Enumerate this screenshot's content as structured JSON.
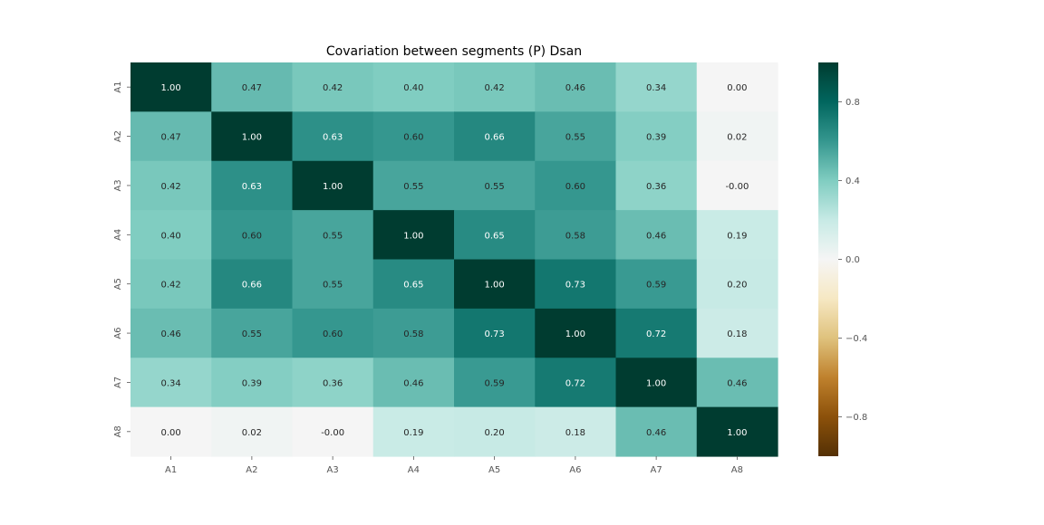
{
  "chart_data": {
    "type": "heatmap",
    "title": "Covariation between segments (P) Dsan",
    "xlabel": "",
    "ylabel": "",
    "x_categories": [
      "A1",
      "A2",
      "A3",
      "A4",
      "A5",
      "A6",
      "A7",
      "A8"
    ],
    "y_categories": [
      "A1",
      "A2",
      "A3",
      "A4",
      "A5",
      "A6",
      "A7",
      "A8"
    ],
    "values": [
      [
        1.0,
        0.47,
        0.42,
        0.4,
        0.42,
        0.46,
        0.34,
        0.0
      ],
      [
        0.47,
        1.0,
        0.63,
        0.6,
        0.66,
        0.55,
        0.39,
        0.02
      ],
      [
        0.42,
        0.63,
        1.0,
        0.55,
        0.55,
        0.6,
        0.36,
        -0.0
      ],
      [
        0.4,
        0.6,
        0.55,
        1.0,
        0.65,
        0.58,
        0.46,
        0.19
      ],
      [
        0.42,
        0.66,
        0.55,
        0.65,
        1.0,
        0.73,
        0.59,
        0.2
      ],
      [
        0.46,
        0.55,
        0.6,
        0.58,
        0.73,
        1.0,
        0.72,
        0.18
      ],
      [
        0.34,
        0.39,
        0.36,
        0.46,
        0.59,
        0.72,
        1.0,
        0.46
      ],
      [
        0.0,
        0.02,
        -0.0,
        0.19,
        0.2,
        0.18,
        0.46,
        1.0
      ]
    ],
    "annotations": [
      [
        "1.00",
        "0.47",
        "0.42",
        "0.40",
        "0.42",
        "0.46",
        "0.34",
        "0.00"
      ],
      [
        "0.47",
        "1.00",
        "0.63",
        "0.60",
        "0.66",
        "0.55",
        "0.39",
        "0.02"
      ],
      [
        "0.42",
        "0.63",
        "1.00",
        "0.55",
        "0.55",
        "0.60",
        "0.36",
        "-0.00"
      ],
      [
        "0.40",
        "0.60",
        "0.55",
        "1.00",
        "0.65",
        "0.58",
        "0.46",
        "0.19"
      ],
      [
        "0.42",
        "0.66",
        "0.55",
        "0.65",
        "1.00",
        "0.73",
        "0.59",
        "0.20"
      ],
      [
        "0.46",
        "0.55",
        "0.60",
        "0.58",
        "0.73",
        "1.00",
        "0.72",
        "0.18"
      ],
      [
        "0.34",
        "0.39",
        "0.36",
        "0.46",
        "0.59",
        "0.72",
        "1.00",
        "0.46"
      ],
      [
        "0.00",
        "0.02",
        "-0.00",
        "0.19",
        "0.20",
        "0.18",
        "0.46",
        "1.00"
      ]
    ],
    "colormap": "BrBG",
    "vmin": -1,
    "vmax": 1,
    "colorbar": {
      "position": "right",
      "ticks": [
        0.8,
        0.4,
        0.0,
        -0.4,
        -0.8
      ],
      "tick_labels": [
        "0.8",
        "0.4",
        "0.0",
        "−0.4",
        "−0.8"
      ]
    },
    "grid": false
  }
}
